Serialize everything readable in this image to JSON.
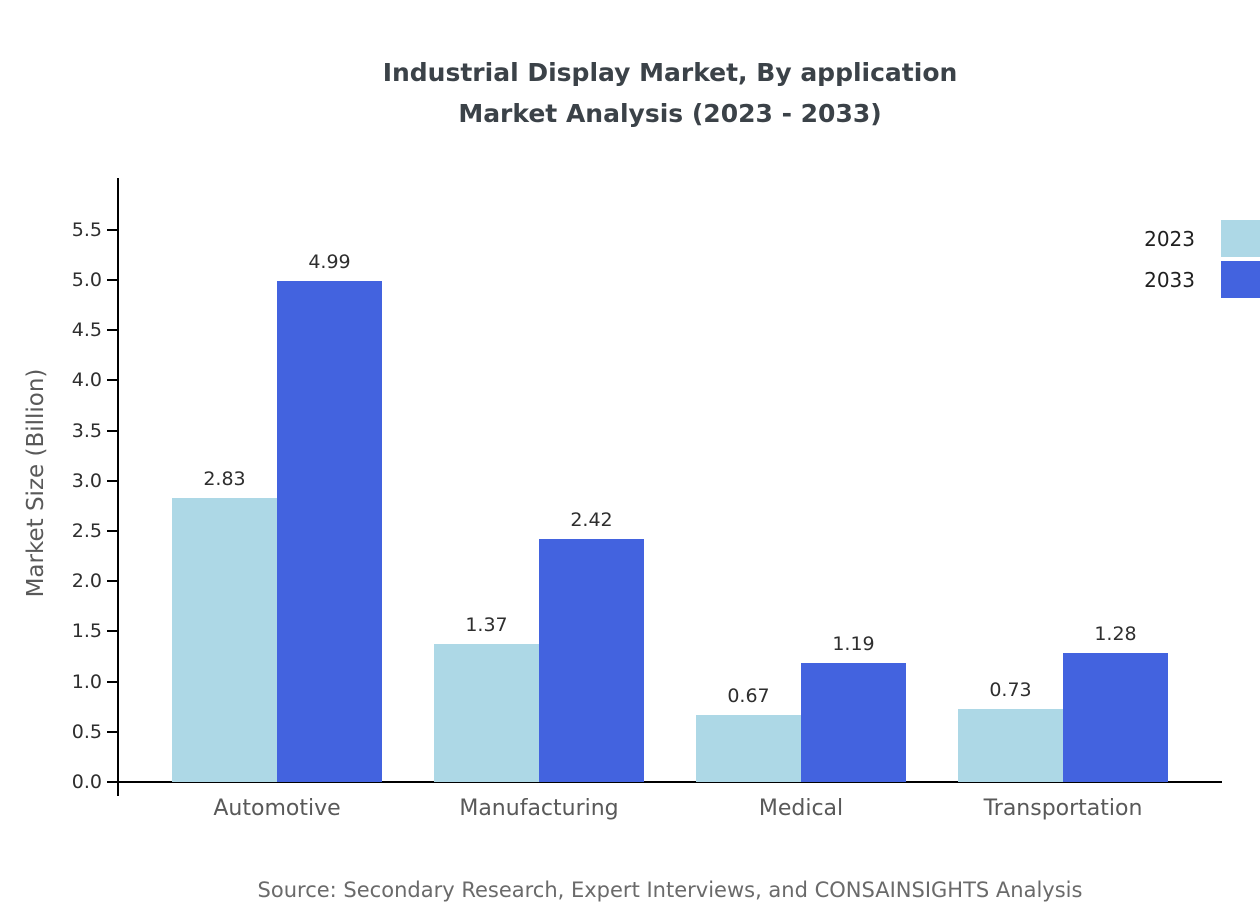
{
  "title": {
    "line1": "Industrial Display Market, By application",
    "line2": "Market Analysis (2023 - 2033)"
  },
  "source": "Source: Secondary Research, Expert Interviews, and CONSAINSIGHTS Analysis",
  "chart_data": {
    "type": "bar",
    "title": "Industrial Display Market, By application Market Analysis (2023 - 2033)",
    "categories": [
      "Automotive",
      "Manufacturing",
      "Medical",
      "Transportation"
    ],
    "series": [
      {
        "name": "2023",
        "color": "#add8e6",
        "values": [
          2.83,
          1.37,
          0.67,
          0.73
        ]
      },
      {
        "name": "2033",
        "color": "#4363df",
        "values": [
          4.99,
          2.42,
          1.19,
          1.28
        ]
      }
    ],
    "xlabel": "",
    "ylabel": "Market Size (Billion)",
    "yticks": [
      0.0,
      0.5,
      1.0,
      1.5,
      2.0,
      2.5,
      3.0,
      3.5,
      4.0,
      4.5,
      5.0,
      5.5
    ],
    "ylim": [
      0,
      5.95
    ],
    "grid": false,
    "legend_position": "top-right"
  }
}
